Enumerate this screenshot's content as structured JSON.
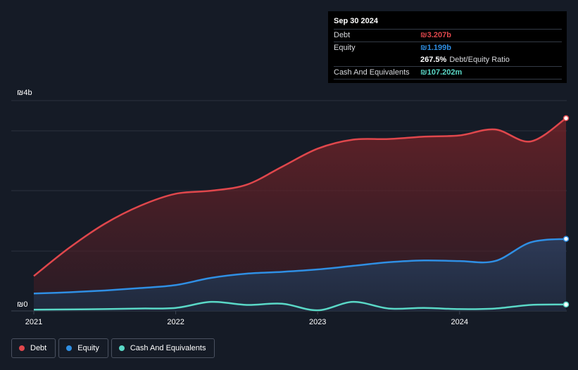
{
  "tooltip": {
    "date": "Sep 30 2024",
    "debt_label": "Debt",
    "debt_value": "₪3.207b",
    "equity_label": "Equity",
    "equity_value": "₪1.199b",
    "ratio_value": "267.5%",
    "ratio_label": "Debt/Equity Ratio",
    "cash_label": "Cash And Equivalents",
    "cash_value": "₪107.202m"
  },
  "legend": [
    {
      "label": "Debt",
      "color": "#e0474c"
    },
    {
      "label": "Equity",
      "color": "#2f8fe4"
    },
    {
      "label": "Cash And Equivalents",
      "color": "#5ad8c7"
    }
  ],
  "colors": {
    "debt": "#e0474c",
    "equity": "#2f8fe4",
    "cash": "#5ad8c7",
    "background": "#151b26"
  },
  "chart_data": {
    "type": "area",
    "y_top_label": "₪4b",
    "y_bottom_label": "₪0",
    "ylim": [
      0,
      3.5
    ],
    "xlim": [
      2021.0,
      2024.75
    ],
    "x_ticks": [
      {
        "value": 2021.0,
        "label": "2021"
      },
      {
        "value": 2022.0,
        "label": "2022"
      },
      {
        "value": 2023.0,
        "label": "2023"
      },
      {
        "value": 2024.0,
        "label": "2024"
      }
    ],
    "series": [
      {
        "name": "Debt",
        "x": [
          2021.0,
          2021.25,
          2021.5,
          2021.75,
          2022.0,
          2022.25,
          2022.5,
          2022.75,
          2023.0,
          2023.25,
          2023.5,
          2023.75,
          2024.0,
          2024.25,
          2024.5,
          2024.75
        ],
        "values": [
          0.58,
          1.05,
          1.45,
          1.75,
          1.95,
          2.0,
          2.1,
          2.4,
          2.7,
          2.85,
          2.86,
          2.9,
          2.92,
          3.02,
          2.82,
          3.207
        ]
      },
      {
        "name": "Equity",
        "x": [
          2021.0,
          2021.25,
          2021.5,
          2021.75,
          2022.0,
          2022.25,
          2022.5,
          2022.75,
          2023.0,
          2023.25,
          2023.5,
          2023.75,
          2024.0,
          2024.25,
          2024.5,
          2024.75
        ],
        "values": [
          0.29,
          0.31,
          0.34,
          0.38,
          0.43,
          0.55,
          0.62,
          0.65,
          0.69,
          0.75,
          0.81,
          0.84,
          0.83,
          0.83,
          1.14,
          1.199
        ]
      },
      {
        "name": "Cash And Equivalents",
        "x": [
          2021.0,
          2021.25,
          2021.5,
          2021.75,
          2022.0,
          2022.25,
          2022.5,
          2022.75,
          2023.0,
          2023.25,
          2023.5,
          2023.75,
          2024.0,
          2024.25,
          2024.5,
          2024.75
        ],
        "values": [
          0.02,
          0.025,
          0.03,
          0.04,
          0.05,
          0.15,
          0.1,
          0.12,
          0.01,
          0.15,
          0.04,
          0.05,
          0.03,
          0.04,
          0.1,
          0.107
        ]
      }
    ]
  }
}
